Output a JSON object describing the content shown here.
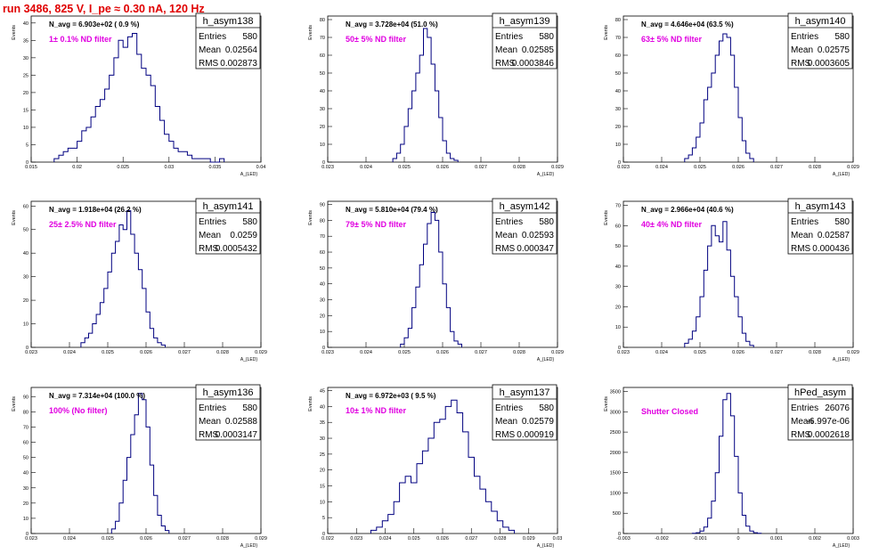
{
  "page_title": "run 3486,   825 V, I_pe ≈ 0.30 nA, 120 Hz",
  "colors": {
    "histogram_line": "#000080",
    "filter_label": "#e000e0",
    "title": "#e00000",
    "frame": "#000000"
  },
  "stat_labels": {
    "entries": "Entries",
    "mean": "Mean",
    "rms": "RMS"
  },
  "chart_data": [
    {
      "type": "histogram",
      "name": "h_asym138",
      "nav": "N_avg = 6.903e+02 ( 0.9 %)",
      "filter": "1± 0.1% ND filter",
      "entries": "580",
      "mean": "0.02564",
      "rms": "0.002873",
      "xlabel": "A_{LED}",
      "ylabel": "Events",
      "xlim": [
        0.015,
        0.04
      ],
      "ylim": [
        0,
        42
      ],
      "xticks": [
        "0.015",
        "0.02",
        "0.025",
        "0.03",
        "0.035",
        "0.04"
      ],
      "yticks": [
        "0",
        "5",
        "10",
        "15",
        "20",
        "25",
        "30",
        "35",
        "40"
      ],
      "bin_edges_start": 0.0175,
      "bin_width": 0.0005,
      "counts": [
        1,
        2,
        3,
        4,
        4,
        6,
        9,
        10,
        13,
        16,
        18,
        21,
        25,
        30,
        35,
        33,
        36,
        37,
        31,
        27,
        25,
        22,
        16,
        12,
        8,
        6,
        4,
        3,
        3,
        2,
        1,
        1,
        1,
        1,
        0,
        0,
        1
      ]
    },
    {
      "type": "histogram",
      "name": "h_asym139",
      "nav": "N_avg = 3.728e+04 (51.0 %)",
      "filter": "50± 5% ND filter",
      "entries": "580",
      "mean": "0.02585",
      "rms": "0.0003846",
      "xlabel": "A_{LED}",
      "ylabel": "Events",
      "xlim": [
        0.023,
        0.029
      ],
      "ylim": [
        0,
        82
      ],
      "xticks": [
        "0.023",
        "0.024",
        "0.025",
        "0.026",
        "0.027",
        "0.028",
        "0.029"
      ],
      "yticks": [
        "0",
        "10",
        "20",
        "30",
        "40",
        "50",
        "60",
        "70",
        "80"
      ],
      "bin_edges_start": 0.0247,
      "bin_width": 0.0001,
      "counts": [
        2,
        5,
        10,
        20,
        30,
        40,
        50,
        60,
        75,
        70,
        55,
        40,
        25,
        12,
        5,
        2,
        1
      ]
    },
    {
      "type": "histogram",
      "name": "h_asym140",
      "nav": "N_avg = 4.646e+04 (63.5 %)",
      "filter": "63± 5% ND filter",
      "entries": "580",
      "mean": "0.02575",
      "rms": "0.0003605",
      "xlabel": "A_{LED}",
      "ylabel": "Events",
      "xlim": [
        0.023,
        0.029
      ],
      "ylim": [
        0,
        82
      ],
      "xticks": [
        "0.023",
        "0.024",
        "0.025",
        "0.026",
        "0.027",
        "0.028",
        "0.029"
      ],
      "yticks": [
        "0",
        "10",
        "20",
        "30",
        "40",
        "50",
        "60",
        "70",
        "80"
      ],
      "bin_edges_start": 0.0246,
      "bin_width": 0.0001,
      "counts": [
        2,
        4,
        8,
        14,
        22,
        35,
        42,
        50,
        60,
        68,
        72,
        70,
        60,
        42,
        25,
        12,
        5,
        2
      ]
    },
    {
      "type": "histogram",
      "name": "h_asym141",
      "nav": "N_avg = 1.918e+04 (26.2 %)",
      "filter": "25± 2.5% ND filter",
      "entries": "580",
      "mean": "0.0259",
      "rms": "0.0005432",
      "xlabel": "A_{LED}",
      "ylabel": "Events",
      "xlim": [
        0.023,
        0.029
      ],
      "ylim": [
        0,
        62
      ],
      "xticks": [
        "0.023",
        "0.024",
        "0.025",
        "0.026",
        "0.027",
        "0.028",
        "0.029"
      ],
      "yticks": [
        "0",
        "10",
        "20",
        "30",
        "40",
        "50",
        "60"
      ],
      "bin_edges_start": 0.0243,
      "bin_width": 0.0001,
      "counts": [
        2,
        4,
        6,
        10,
        14,
        19,
        25,
        32,
        40,
        45,
        52,
        50,
        58,
        48,
        40,
        33,
        25,
        15,
        8,
        4,
        2,
        1
      ]
    },
    {
      "type": "histogram",
      "name": "h_asym142",
      "nav": "N_avg = 5.810e+04 (79.4 %)",
      "filter": "79± 5% ND filter",
      "entries": "580",
      "mean": "0.02593",
      "rms": "0.000347",
      "xlabel": "A_{LED}",
      "ylabel": "Events",
      "xlim": [
        0.023,
        0.029
      ],
      "ylim": [
        0,
        92
      ],
      "xticks": [
        "0.023",
        "0.024",
        "0.025",
        "0.026",
        "0.027",
        "0.028",
        "0.029"
      ],
      "yticks": [
        "0",
        "10",
        "20",
        "30",
        "40",
        "50",
        "60",
        "70",
        "80",
        "90"
      ],
      "bin_edges_start": 0.0249,
      "bin_width": 0.0001,
      "counts": [
        2,
        6,
        12,
        25,
        38,
        52,
        65,
        78,
        85,
        80,
        60,
        40,
        25,
        10,
        4,
        2
      ]
    },
    {
      "type": "histogram",
      "name": "h_asym143",
      "nav": "N_avg = 2.966e+04 (40.6 %)",
      "filter": "40± 4% ND filter",
      "entries": "580",
      "mean": "0.02587",
      "rms": "0.000436",
      "xlabel": "A_{LED}",
      "ylabel": "Events",
      "xlim": [
        0.023,
        0.029
      ],
      "ylim": [
        0,
        72
      ],
      "xticks": [
        "0.023",
        "0.024",
        "0.025",
        "0.026",
        "0.027",
        "0.028",
        "0.029"
      ],
      "yticks": [
        "0",
        "10",
        "20",
        "30",
        "40",
        "50",
        "60",
        "70"
      ],
      "bin_edges_start": 0.0246,
      "bin_width": 0.0001,
      "counts": [
        2,
        4,
        8,
        15,
        25,
        38,
        50,
        60,
        55,
        52,
        62,
        48,
        35,
        25,
        15,
        7,
        3,
        1
      ]
    },
    {
      "type": "histogram",
      "name": "h_asym136",
      "nav": "N_avg = 7.314e+04 (100.0 %)",
      "filter": "100% (No filter)",
      "entries": "580",
      "mean": "0.02588",
      "rms": "0.0003147",
      "xlabel": "A_{LED}",
      "ylabel": "Events",
      "xlim": [
        0.023,
        0.029
      ],
      "ylim": [
        0,
        96
      ],
      "xticks": [
        "0.023",
        "0.024",
        "0.025",
        "0.026",
        "0.027",
        "0.028",
        "0.029"
      ],
      "yticks": [
        "0",
        "10",
        "20",
        "30",
        "40",
        "50",
        "60",
        "70",
        "80",
        "90"
      ],
      "bin_edges_start": 0.0251,
      "bin_width": 0.0001,
      "counts": [
        3,
        8,
        20,
        35,
        50,
        65,
        78,
        92,
        88,
        70,
        45,
        25,
        12,
        5,
        2
      ]
    },
    {
      "type": "histogram",
      "name": "h_asym137",
      "nav": "N_avg = 6.972e+03 ( 9.5 %)",
      "filter": "10± 1% ND filter",
      "entries": "580",
      "mean": "0.02579",
      "rms": "0.000919",
      "xlabel": "A_{LED}",
      "ylabel": "Events",
      "xlim": [
        0.022,
        0.03
      ],
      "ylim": [
        0,
        46
      ],
      "xticks": [
        "0.022",
        "0.023",
        "0.024",
        "0.025",
        "0.026",
        "0.027",
        "0.028",
        "0.029",
        "0.03"
      ],
      "yticks": [
        "0",
        "5",
        "10",
        "15",
        "20",
        "25",
        "30",
        "35",
        "40",
        "45"
      ],
      "bin_edges_start": 0.0235,
      "bin_width": 0.0002,
      "counts": [
        1,
        2,
        4,
        6,
        10,
        16,
        18,
        16,
        22,
        26,
        30,
        35,
        36,
        40,
        42,
        38,
        32,
        24,
        18,
        14,
        10,
        7,
        4,
        2,
        1
      ]
    },
    {
      "type": "histogram",
      "name": "hPed_asym",
      "nav": "",
      "filter": "Shutter Closed",
      "entries": "26076",
      "mean": "-6.997e-06",
      "rms": "0.0002618",
      "xlabel": "A_{LED}",
      "ylabel": "Events",
      "xlim": [
        -0.003,
        0.003
      ],
      "ylim": [
        0,
        3600
      ],
      "xticks": [
        "-0.003",
        "-0.002",
        "-0.001",
        "0",
        "0.001",
        "0.002",
        "0.003"
      ],
      "yticks": [
        "0",
        "500",
        "1000",
        "1500",
        "2000",
        "2500",
        "3000",
        "3500"
      ],
      "bin_edges_start": -0.0012,
      "bin_width": 0.0001,
      "counts": [
        5,
        20,
        60,
        160,
        380,
        800,
        1500,
        2400,
        3300,
        3450,
        2900,
        1900,
        1000,
        450,
        180,
        60,
        20,
        5
      ]
    }
  ]
}
